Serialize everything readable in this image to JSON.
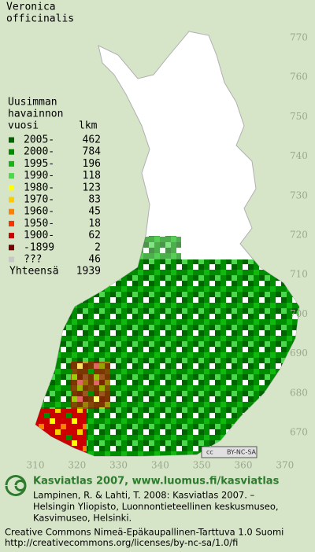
{
  "title": [
    "Veronica",
    "officinalis"
  ],
  "legend": {
    "header": [
      "Uusimman",
      "havainnon",
      "vuosi"
    ],
    "count_header": "lkm",
    "rows": [
      {
        "label": "2005-",
        "count": 462,
        "color": "#006400"
      },
      {
        "label": "2000-",
        "count": 784,
        "color": "#008c00"
      },
      {
        "label": "1995-",
        "count": 196,
        "color": "#10b810"
      },
      {
        "label": "1990-",
        "count": 118,
        "color": "#4cd84c"
      },
      {
        "label": "1980-",
        "count": 123,
        "color": "#ffff00"
      },
      {
        "label": "1970-",
        "count": 83,
        "color": "#ffcc00"
      },
      {
        "label": "1960-",
        "count": 45,
        "color": "#ff8000"
      },
      {
        "label": "1950-",
        "count": 18,
        "color": "#ff3000"
      },
      {
        "label": "1900-",
        "count": 62,
        "color": "#cc0000"
      },
      {
        "label": "-1899",
        "count": 2,
        "color": "#7a0000"
      },
      {
        "label": "???",
        "count": 46,
        "color": "#c8c8c8"
      }
    ],
    "total_label": "Yhteensä",
    "total": 1939
  },
  "grid": {
    "north": [
      770,
      760,
      750,
      740,
      730,
      720,
      710,
      700,
      690,
      680,
      670
    ],
    "east": [
      310,
      320,
      330,
      340,
      350,
      360,
      370
    ]
  },
  "badge": {
    "cc": "cc",
    "text": "BY-NC-SA"
  },
  "footer": {
    "heading": "Kasviatlas 2007, www.luomus.fi/kasviatlas",
    "citation": [
      "Lampinen, R. & Lahti, T. 2008: Kasviatlas 2007. –",
      "Helsingin Yliopisto, Luonnontieteellinen keskusmuseo,",
      "Kasvimuseo, Helsinki."
    ],
    "license": [
      "Creative Commons Nimeä-Epäkaupallinen-Tarttuva 1.0 Suomi",
      "http://creativecommons.org/licenses/by-nc-sa/1.0/fi"
    ]
  }
}
